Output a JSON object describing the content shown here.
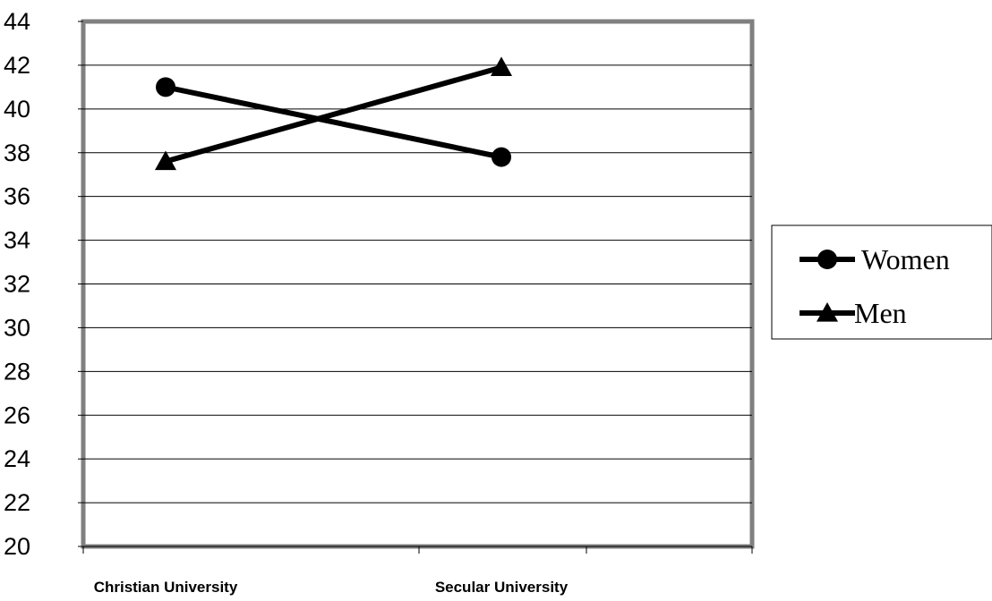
{
  "chart_data": {
    "type": "line",
    "categories": [
      "Christian University",
      "Secular University"
    ],
    "series": [
      {
        "name": "Women",
        "marker": "circle",
        "values": [
          41.0,
          37.8
        ]
      },
      {
        "name": "Men",
        "marker": "triangle",
        "values": [
          37.6,
          41.9
        ]
      }
    ],
    "yticks": [
      20,
      22,
      24,
      26,
      28,
      30,
      32,
      34,
      36,
      38,
      40,
      42,
      44
    ],
    "ylim": [
      20,
      44
    ],
    "grid": true,
    "legend_position": "right",
    "colors": {
      "line": "#000000",
      "grid": "#000000",
      "frame": "#808080"
    }
  }
}
